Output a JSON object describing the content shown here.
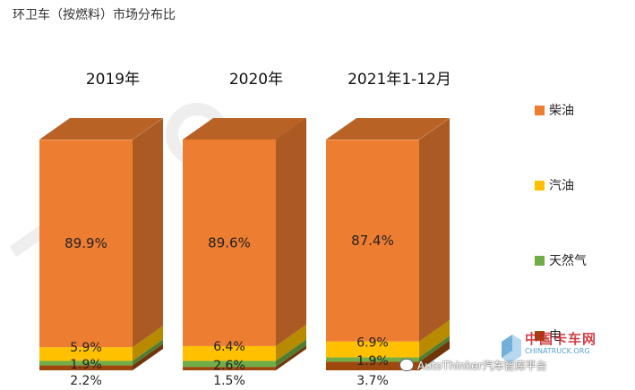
{
  "page": {
    "title": "环卫车（按燃料）市场分布比"
  },
  "colors": {
    "diesel": "#ED7D31",
    "gasoline": "#FFC000",
    "natural_gas": "#70AD47",
    "electric": "#9E480E"
  },
  "watermark": {
    "wechat_account": "AutoThinker汽车智库平台",
    "brand_cn": "中国卡车网",
    "brand_en": "CHINATRUCK.ORG"
  },
  "chart_data": {
    "type": "bar",
    "stacked": true,
    "percent": true,
    "style": "3d-column",
    "categories": [
      "2019年",
      "2020年",
      "2021年1-12月"
    ],
    "series": [
      {
        "name": "电",
        "values": [
          2.2,
          1.5,
          3.7
        ],
        "labels": [
          "2.2%",
          "1.5%",
          "3.7%"
        ],
        "color_key": "electric"
      },
      {
        "name": "天然气",
        "values": [
          1.9,
          2.6,
          1.9
        ],
        "labels": [
          "1.9%",
          "2.6%",
          "1.9%"
        ],
        "color_key": "natural_gas"
      },
      {
        "name": "汽油",
        "values": [
          5.9,
          6.4,
          6.9
        ],
        "labels": [
          "5.9%",
          "6.4%",
          "6.9%"
        ],
        "color_key": "gasoline"
      },
      {
        "name": "柴油",
        "values": [
          89.9,
          89.6,
          87.4
        ],
        "labels": [
          "89.9%",
          "89.6%",
          "87.4%"
        ],
        "color_key": "diesel"
      }
    ],
    "legend_order": [
      "柴油",
      "汽油",
      "天然气",
      "电"
    ],
    "legend_position": "right",
    "ylim": [
      0,
      100
    ],
    "grid": false
  }
}
